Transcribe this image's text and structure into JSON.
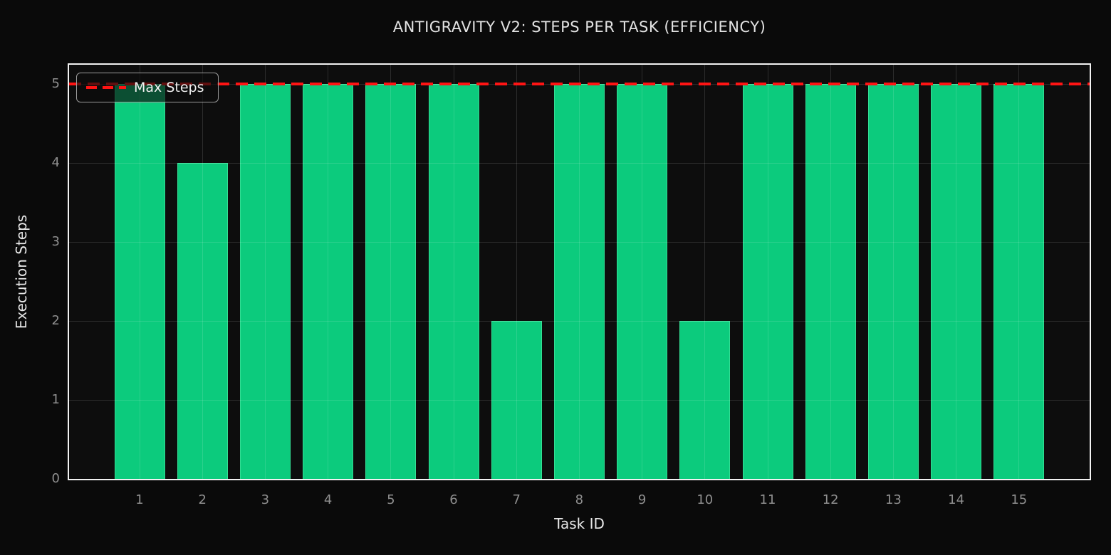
{
  "chart_data": {
    "type": "bar",
    "title": "ANTIGRAVITY V2: STEPS PER TASK (EFFICIENCY)",
    "xlabel": "Task ID",
    "ylabel": "Execution Steps",
    "categories": [
      "1",
      "2",
      "3",
      "4",
      "5",
      "6",
      "7",
      "8",
      "9",
      "10",
      "11",
      "12",
      "13",
      "14",
      "15"
    ],
    "values": [
      5,
      4,
      5,
      5,
      5,
      5,
      2,
      5,
      5,
      2,
      5,
      5,
      5,
      5,
      5
    ],
    "ylim": [
      0,
      5.25
    ],
    "yticks": [
      0,
      1,
      2,
      3,
      4,
      5
    ],
    "grid": true,
    "grid_above_bars": true,
    "reference_line": {
      "y": 5,
      "style": "dashed",
      "label": "Max Steps"
    },
    "legend": {
      "position": "upper-left",
      "entries": [
        {
          "label": "Max Steps",
          "marker": "red-dashed-line"
        }
      ]
    },
    "colors": {
      "background": "#0a0a0a",
      "plot_background": "#0d0d0d",
      "bar_fill": "#0ccb7d",
      "bar_edge": "#34df95",
      "reference_line": "#ff1414",
      "axes_border": "#f2f2f2",
      "grid": "rgba(255,255,255,0.13)",
      "tick_label": "#8f8f8f",
      "axis_label": "#e8e8e8",
      "title": "#e3e3e3",
      "legend_border": "#9b9b9b",
      "legend_text": "#f0f0f0"
    }
  }
}
